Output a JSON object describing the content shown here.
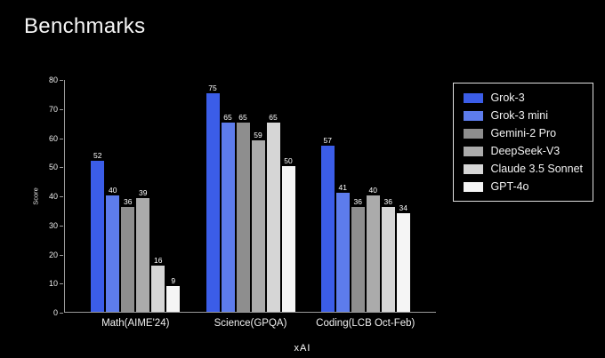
{
  "title": "Benchmarks",
  "logo": "xAI",
  "chart_data": {
    "type": "bar",
    "title": "Benchmarks",
    "categories": [
      "Math(AIME'24)",
      "Science(GPQA)",
      "Coding(LCB Oct-Feb)"
    ],
    "series": [
      {
        "name": "Grok-3",
        "color": "#3b5de8",
        "values": [
          52,
          75,
          57
        ]
      },
      {
        "name": "Grok-3 mini",
        "color": "#5d7cec",
        "values": [
          40,
          65,
          41
        ]
      },
      {
        "name": "Gemini-2 Pro",
        "color": "#8e8e8e",
        "values": [
          36,
          65,
          36
        ]
      },
      {
        "name": "DeepSeek-V3",
        "color": "#ababab",
        "values": [
          39,
          59,
          40
        ]
      },
      {
        "name": "Claude 3.5 Sonnet",
        "color": "#d6d6d6",
        "values": [
          16,
          65,
          36
        ]
      },
      {
        "name": "GPT-4o",
        "color": "#f5f5f5",
        "values": [
          9,
          50,
          34
        ]
      }
    ],
    "xlabel": "",
    "ylabel": "Score",
    "ylim": [
      0,
      80
    ],
    "yticks": [
      0,
      10,
      20,
      30,
      40,
      50,
      60,
      70,
      80
    ],
    "grid": false,
    "legend_position": "right",
    "background": "#000000"
  }
}
